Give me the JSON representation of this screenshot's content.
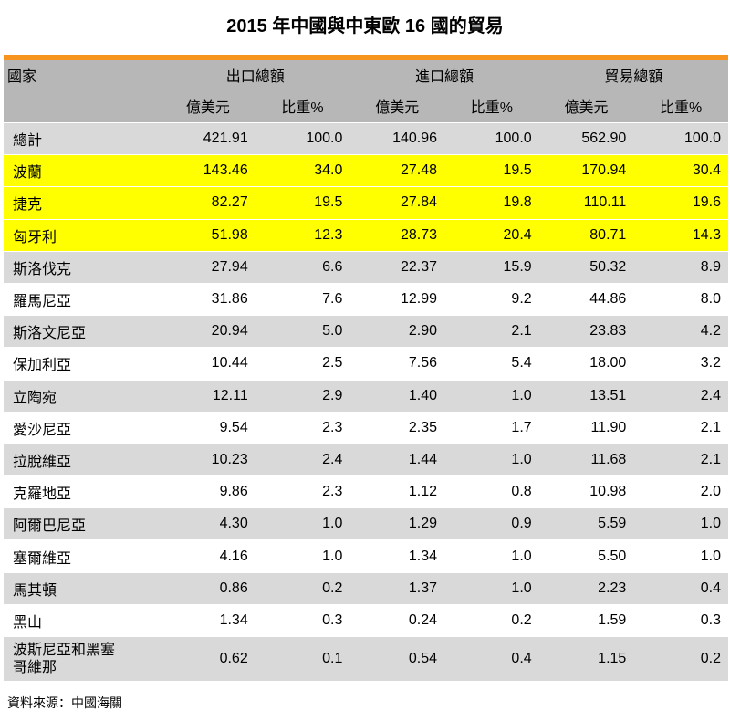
{
  "title": "2015 年中國與中東歐 16 國的貿易",
  "header": {
    "country": "國家",
    "export": "出口總額",
    "import": "進口總額",
    "trade": "貿易總額",
    "usd": "億美元",
    "share": "比重%"
  },
  "total": {
    "name": "總計",
    "values": [
      "421.91",
      "100.0",
      "140.96",
      "100.0",
      "562.90",
      "100.0"
    ]
  },
  "rows": [
    {
      "name": "波蘭",
      "values": [
        "143.46",
        "34.0",
        "27.48",
        "19.5",
        "170.94",
        "30.4"
      ],
      "style": "yellow"
    },
    {
      "name": "捷克",
      "values": [
        "82.27",
        "19.5",
        "27.84",
        "19.8",
        "110.11",
        "19.6"
      ],
      "style": "yellow"
    },
    {
      "name": "匈牙利",
      "values": [
        "51.98",
        "12.3",
        "28.73",
        "20.4",
        "80.71",
        "14.3"
      ],
      "style": "yellow"
    },
    {
      "name": "斯洛伐克",
      "values": [
        "27.94",
        "6.6",
        "22.37",
        "15.9",
        "50.32",
        "8.9"
      ],
      "style": "grey"
    },
    {
      "name": "羅馬尼亞",
      "values": [
        "31.86",
        "7.6",
        "12.99",
        "9.2",
        "44.86",
        "8.0"
      ],
      "style": "white"
    },
    {
      "name": "斯洛文尼亞",
      "values": [
        "20.94",
        "5.0",
        "2.90",
        "2.1",
        "23.83",
        "4.2"
      ],
      "style": "grey"
    },
    {
      "name": "保加利亞",
      "values": [
        "10.44",
        "2.5",
        "7.56",
        "5.4",
        "18.00",
        "3.2"
      ],
      "style": "white"
    },
    {
      "name": "立陶宛",
      "values": [
        "12.11",
        "2.9",
        "1.40",
        "1.0",
        "13.51",
        "2.4"
      ],
      "style": "grey"
    },
    {
      "name": "愛沙尼亞",
      "values": [
        "9.54",
        "2.3",
        "2.35",
        "1.7",
        "11.90",
        "2.1"
      ],
      "style": "white"
    },
    {
      "name": "拉脫維亞",
      "values": [
        "10.23",
        "2.4",
        "1.44",
        "1.0",
        "11.68",
        "2.1"
      ],
      "style": "grey"
    },
    {
      "name": "克羅地亞",
      "values": [
        "9.86",
        "2.3",
        "1.12",
        "0.8",
        "10.98",
        "2.0"
      ],
      "style": "white"
    },
    {
      "name": "阿爾巴尼亞",
      "values": [
        "4.30",
        "1.0",
        "1.29",
        "0.9",
        "5.59",
        "1.0"
      ],
      "style": "grey"
    },
    {
      "name": "塞爾維亞",
      "values": [
        "4.16",
        "1.0",
        "1.34",
        "1.0",
        "5.50",
        "1.0"
      ],
      "style": "white"
    },
    {
      "name": "馬其頓",
      "values": [
        "0.86",
        "0.2",
        "1.37",
        "1.0",
        "2.23",
        "0.4"
      ],
      "style": "grey"
    },
    {
      "name": "黑山",
      "values": [
        "1.34",
        "0.3",
        "0.24",
        "0.2",
        "1.59",
        "0.3"
      ],
      "style": "white"
    },
    {
      "name": "波斯尼亞和黑塞哥維那",
      "values": [
        "0.62",
        "0.1",
        "0.54",
        "0.4",
        "1.15",
        "0.2"
      ],
      "style": "grey"
    }
  ],
  "source": "資料來源：中國海關",
  "colors": {
    "accent": "#f7941d",
    "header": "#b7b7b7",
    "grey_row": "#d9d9d9",
    "highlight": "#ffff00"
  },
  "chart_data": {
    "type": "table",
    "title": "2015 年中國與中東歐 16 國的貿易",
    "columns": [
      "國家",
      "出口總額 億美元",
      "出口總額 比重%",
      "進口總額 億美元",
      "進口總額 比重%",
      "貿易總額 億美元",
      "貿易總額 比重%"
    ]
  }
}
